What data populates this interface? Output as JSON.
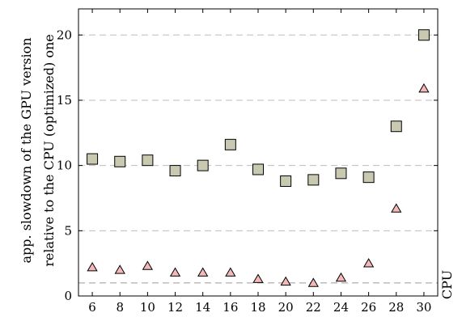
{
  "chart_data": {
    "type": "scatter",
    "title": "",
    "ylabel": [
      "app. slowdown of the GPU version",
      "relative to the CPU (optimized) one"
    ],
    "xlabel": "",
    "xlim": [
      5,
      31
    ],
    "ylim": [
      0,
      22
    ],
    "x_ticks": [
      6,
      8,
      10,
      12,
      14,
      16,
      18,
      20,
      22,
      24,
      26,
      28,
      30
    ],
    "y_ticks": [
      0,
      5,
      10,
      15,
      20
    ],
    "grid": "horizontal dashed",
    "reference_line": {
      "y": 1,
      "label": "CPU"
    },
    "series": [
      {
        "marker": "square",
        "color": "#c9c9b1",
        "x": [
          6,
          8,
          10,
          12,
          14,
          16,
          18,
          20,
          22,
          24,
          26,
          28,
          30
        ],
        "y": [
          10.5,
          10.3,
          10.4,
          9.6,
          10.0,
          11.6,
          9.7,
          8.8,
          8.9,
          9.4,
          9.1,
          13.0,
          20.0
        ]
      },
      {
        "marker": "triangle",
        "color": "#f4b8b8",
        "x": [
          6,
          8,
          10,
          12,
          14,
          16,
          18,
          20,
          22,
          24,
          26,
          28,
          30
        ],
        "y": [
          2.2,
          2.0,
          2.3,
          1.8,
          1.8,
          1.8,
          1.3,
          1.1,
          1.0,
          1.4,
          2.5,
          6.7,
          15.9
        ]
      }
    ]
  }
}
